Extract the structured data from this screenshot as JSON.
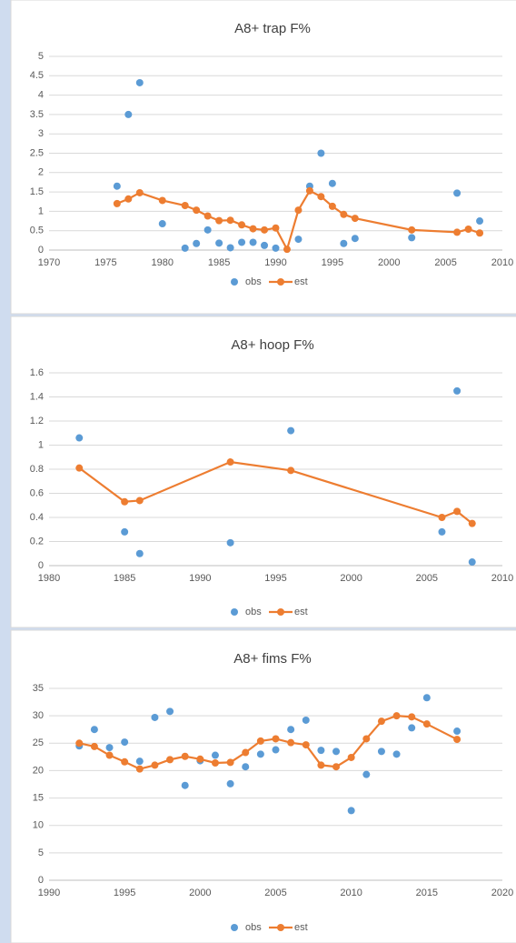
{
  "chart_data": [
    {
      "type": "line",
      "title": "A8+ trap F%",
      "xlim": [
        1970,
        2010
      ],
      "xticks": [
        1970,
        1975,
        1980,
        1985,
        1990,
        1995,
        2000,
        2005,
        2010
      ],
      "ylim": [
        0,
        5
      ],
      "yticks": [
        0,
        0.5,
        1,
        1.5,
        2,
        2.5,
        3,
        3.5,
        4,
        4.5,
        5
      ],
      "grid": true,
      "legend": "bottom",
      "series": [
        {
          "name": "obs",
          "type": "scatter",
          "color": "#5b9bd5",
          "x": [
            1976,
            1977,
            1978,
            1980,
            1982,
            1983,
            1984,
            1985,
            1986,
            1987,
            1988,
            1989,
            1990,
            1992,
            1993,
            1994,
            1995,
            1996,
            1997,
            2002,
            2006,
            2008
          ],
          "values": [
            1.65,
            3.5,
            4.32,
            0.68,
            0.05,
            0.17,
            0.52,
            0.18,
            0.06,
            0.2,
            0.2,
            0.12,
            0.05,
            0.28,
            1.65,
            2.5,
            1.72,
            0.17,
            0.3,
            0.32,
            1.47,
            0.75
          ]
        },
        {
          "name": "est",
          "type": "line",
          "color": "#ed7d31",
          "x": [
            1976,
            1977,
            1978,
            1980,
            1982,
            1983,
            1984,
            1985,
            1986,
            1987,
            1988,
            1989,
            1990,
            1991,
            1992,
            1993,
            1994,
            1995,
            1996,
            1997,
            2002,
            2006,
            2007,
            2008
          ],
          "values": [
            1.2,
            1.32,
            1.48,
            1.28,
            1.15,
            1.03,
            0.88,
            0.76,
            0.77,
            0.65,
            0.55,
            0.52,
            0.57,
            0.02,
            1.03,
            1.53,
            1.38,
            1.13,
            0.92,
            0.82,
            0.52,
            0.46,
            0.54,
            0.44
          ]
        }
      ]
    },
    {
      "type": "line",
      "title": "A8+ hoop F%",
      "xlim": [
        1980,
        2010
      ],
      "xticks": [
        1980,
        1985,
        1990,
        1995,
        2000,
        2005,
        2010
      ],
      "ylim": [
        0,
        1.6
      ],
      "yticks": [
        0,
        0.2,
        0.4,
        0.6,
        0.8,
        1,
        1.2,
        1.4,
        1.6
      ],
      "grid": true,
      "legend": "bottom",
      "series": [
        {
          "name": "obs",
          "type": "scatter",
          "color": "#5b9bd5",
          "x": [
            1982,
            1985,
            1986,
            1992,
            1996,
            2006,
            2007,
            2008
          ],
          "values": [
            1.06,
            0.28,
            0.1,
            0.19,
            1.12,
            0.28,
            1.45,
            0.03
          ]
        },
        {
          "name": "est",
          "type": "line",
          "color": "#ed7d31",
          "x": [
            1982,
            1985,
            1986,
            1992,
            1996,
            2006,
            2007,
            2008
          ],
          "values": [
            0.81,
            0.53,
            0.54,
            0.86,
            0.79,
            0.4,
            0.45,
            0.35
          ]
        }
      ]
    },
    {
      "type": "line",
      "title": "A8+ fims F%",
      "xlim": [
        1990,
        2020
      ],
      "xticks": [
        1990,
        1995,
        2000,
        2005,
        2010,
        2015,
        2020
      ],
      "ylim": [
        0,
        35
      ],
      "yticks": [
        0,
        5,
        10,
        15,
        20,
        25,
        30,
        35
      ],
      "grid": true,
      "legend": "bottom",
      "series": [
        {
          "name": "obs",
          "type": "scatter",
          "color": "#5b9bd5",
          "x": [
            1992,
            1993,
            1994,
            1995,
            1996,
            1997,
            1998,
            1999,
            2000,
            2001,
            2002,
            2003,
            2004,
            2005,
            2006,
            2007,
            2008,
            2009,
            2010,
            2011,
            2012,
            2013,
            2014,
            2015,
            2017
          ],
          "values": [
            24.5,
            27.5,
            24.2,
            25.2,
            21.7,
            29.7,
            30.8,
            17.3,
            21.8,
            22.8,
            17.6,
            20.7,
            23,
            23.8,
            27.5,
            29.2,
            23.7,
            23.5,
            12.7,
            19.3,
            23.5,
            23,
            27.8,
            33.3,
            27.2
          ]
        },
        {
          "name": "est",
          "type": "line",
          "color": "#ed7d31",
          "x": [
            1992,
            1993,
            1994,
            1995,
            1996,
            1997,
            1998,
            1999,
            2000,
            2001,
            2002,
            2003,
            2004,
            2005,
            2006,
            2007,
            2008,
            2009,
            2010,
            2011,
            2012,
            2013,
            2014,
            2015,
            2017
          ],
          "values": [
            25,
            24.4,
            22.8,
            21.6,
            20.3,
            21,
            22,
            22.6,
            22.1,
            21.4,
            21.5,
            23.3,
            25.4,
            25.8,
            25.1,
            24.7,
            21,
            20.7,
            22.4,
            25.8,
            29,
            30,
            29.8,
            28.5,
            25.7
          ]
        }
      ]
    }
  ]
}
